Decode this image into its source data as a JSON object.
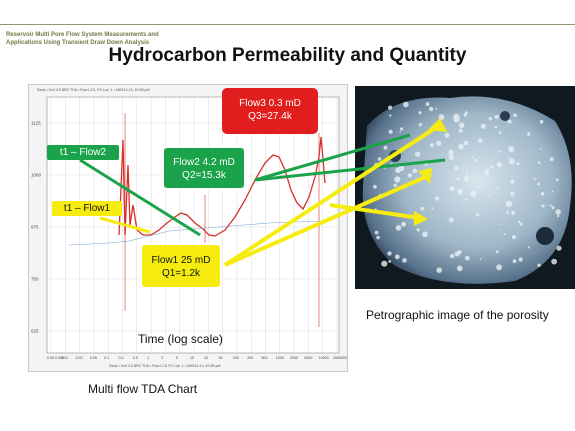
{
  "header": {
    "subtitle_line1": "Reservoir Multi Pore Flow System Measurements and",
    "subtitle_line2": "Applications Using Transient Draw Down Analysis"
  },
  "title": "Hydrocarbon Permeability and Quantity",
  "chart": {
    "top_strip": "Dead • Sort CS BRC TDA • Flow LCS, FG Loe, 1 • 060214-14, 67•59 pdf",
    "bottom_strip": "Dead • Sort CS BRC TDA • Flow LCS FG Loe, 1 • 060214-14, 67•59 pdf",
    "y_ticks": [
      "1125",
      "1000",
      "875",
      "750",
      "625"
    ],
    "x_ticks": [
      "0.00 0.005",
      "0.01",
      "0.02",
      "0.05",
      "0.1",
      "0.2",
      "0.5",
      "1",
      "2",
      "5",
      "10",
      "20",
      "50",
      "100",
      "200",
      "500",
      "1000",
      "2000",
      "5000",
      "10000",
      "20000000"
    ],
    "xlabel": "Time (log scale)",
    "caption": "Multi flow  TDA Chart"
  },
  "callouts": {
    "flow3": {
      "line1": "Flow3 0.3 mD",
      "line2": "Q3=27.4k",
      "color": "#e21d1d"
    },
    "flow2": {
      "line1": "Flow2 4.2 mD",
      "line2": "Q2=15.3k",
      "color": "#1aa34a"
    },
    "flow1": {
      "line1": "Flow1 25 mD",
      "line2": "Q1=1.2k",
      "color": "#f6ec10"
    },
    "t1_flow2": {
      "text": "t1 – Flow2",
      "color": "#1aa34a"
    },
    "t1_flow1": {
      "text": "t1 – Flow1",
      "color": "#f6ec10"
    }
  },
  "photo_caption": "Petrographic image of the porosity"
}
